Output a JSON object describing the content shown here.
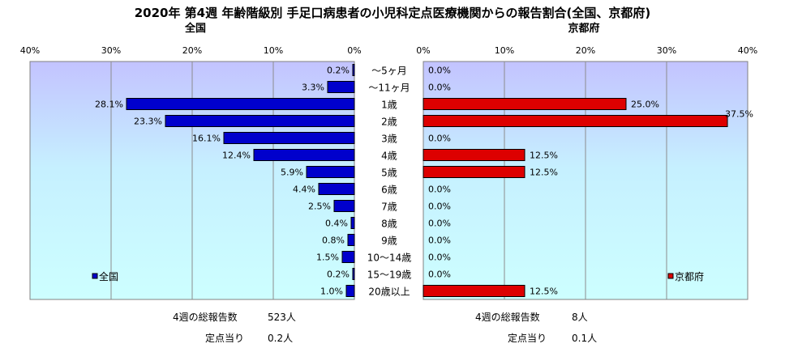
{
  "title": "2020年 第4週 年齢階級別 手足口病患者の小児科定点医療機関からの報告割合(全国、京都府)",
  "left_panel_title": "全国",
  "right_panel_title": "京都府",
  "footer": {
    "national_total_label": "4週の総報告数",
    "national_total_value": "523人",
    "national_per_label": "定点当り",
    "national_per_value": "0.2人",
    "kyoto_total_label": "4週の総報告数",
    "kyoto_total_value": "8人",
    "kyoto_per_label": "定点当り",
    "kyoto_per_value": "0.1人"
  },
  "chart_data": [
    {
      "type": "bar",
      "orientation": "horizontal",
      "direction": "right-to-left",
      "title": "全国",
      "categories": [
        "～5ヶ月",
        "～11ヶ月",
        "1歳",
        "2歳",
        "3歳",
        "4歳",
        "5歳",
        "6歳",
        "7歳",
        "8歳",
        "9歳",
        "10～14歳",
        "15～19歳",
        "20歳以上"
      ],
      "series": [
        {
          "name": "全国",
          "color": "#0000cc",
          "values": [
            0.2,
            3.3,
            28.1,
            23.3,
            16.1,
            12.4,
            5.9,
            4.4,
            2.5,
            0.4,
            0.8,
            1.5,
            0.2,
            1.0
          ],
          "labels": [
            "0.2%",
            "3.3%",
            "28.1%",
            "23.3%",
            "16.1%",
            "12.4%",
            "5.9%",
            "4.4%",
            "2.5%",
            "0.4%",
            "0.8%",
            "1.5%",
            "0.2%",
            "1.0%"
          ]
        }
      ],
      "ticks": [
        "0%",
        "10%",
        "20%",
        "30%",
        "40%"
      ],
      "xlim": [
        0,
        40
      ],
      "legend": "bottom-left"
    },
    {
      "type": "bar",
      "orientation": "horizontal",
      "direction": "left-to-right",
      "title": "京都府",
      "categories": [
        "～5ヶ月",
        "～11ヶ月",
        "1歳",
        "2歳",
        "3歳",
        "4歳",
        "5歳",
        "6歳",
        "7歳",
        "8歳",
        "9歳",
        "10～14歳",
        "15～19歳",
        "20歳以上"
      ],
      "series": [
        {
          "name": "京都府",
          "color": "#dd0000",
          "values": [
            0,
            0,
            25.0,
            37.5,
            0,
            12.5,
            12.5,
            0,
            0,
            0,
            0,
            0,
            0,
            12.5
          ],
          "labels": [
            "0.0%",
            "0.0%",
            "25.0%",
            "37.5%",
            "0.0%",
            "12.5%",
            "12.5%",
            "0.0%",
            "0.0%",
            "0.0%",
            "0.0%",
            "0.0%",
            "0.0%",
            "12.5%"
          ]
        }
      ],
      "ticks": [
        "0%",
        "10%",
        "20%",
        "30%",
        "40%"
      ],
      "xlim": [
        0,
        40
      ],
      "legend": "bottom-right"
    }
  ]
}
